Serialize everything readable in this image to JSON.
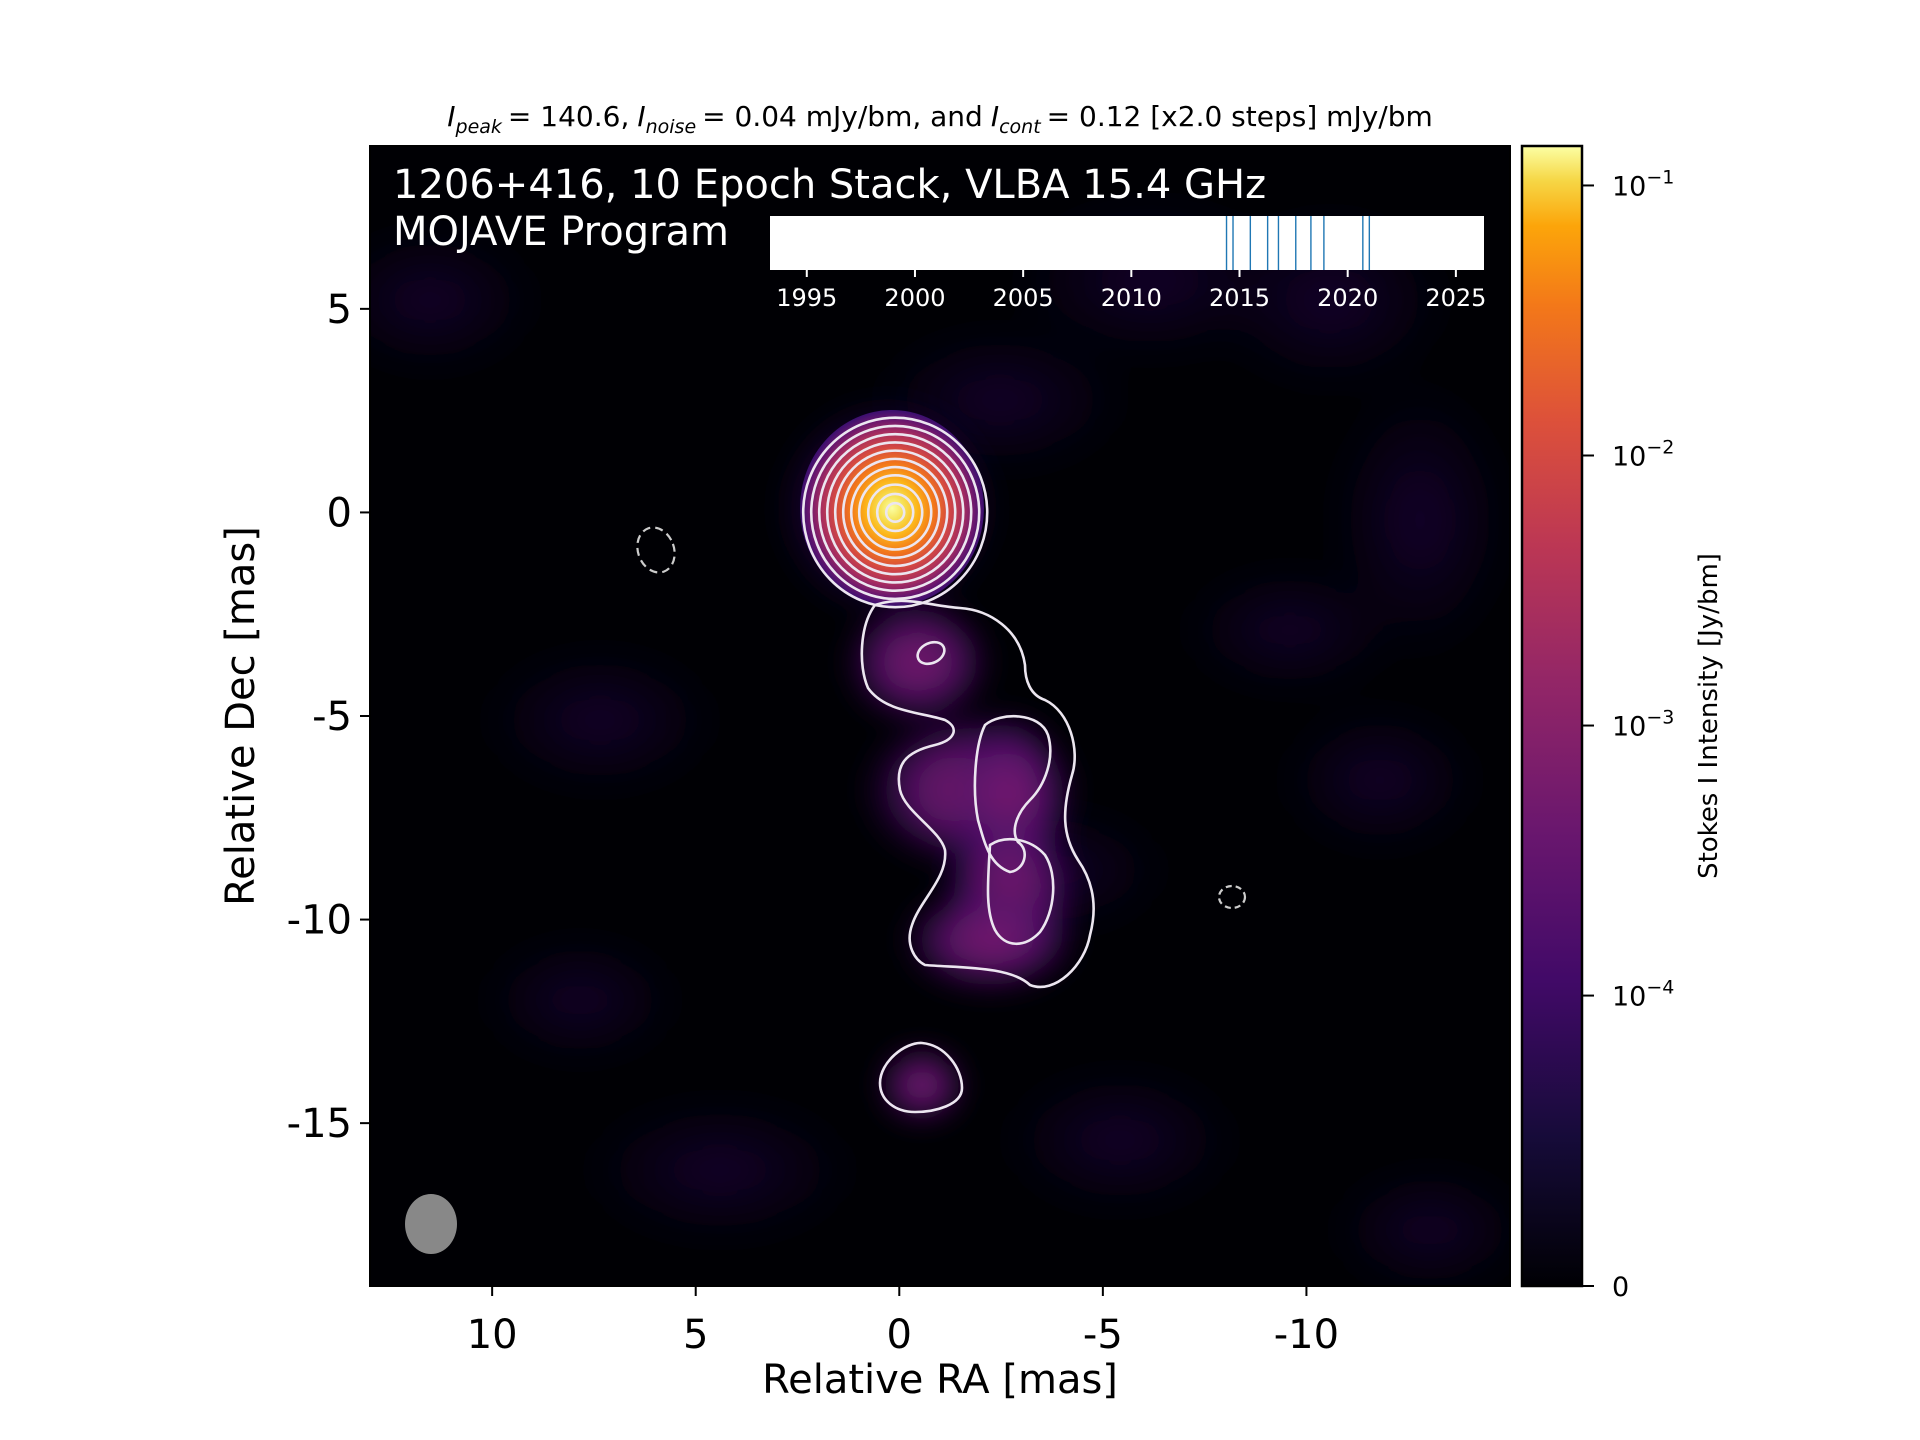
{
  "chart_data": {
    "type": "heatmap",
    "title": {
      "peak_symbol": "I",
      "peak_sub": "peak",
      "peak_value": "= 140.6,",
      "noise_symbol": "I",
      "noise_sub": "noise",
      "noise_value": "= 0.04 mJy/bm, and",
      "cont_symbol": "I",
      "cont_sub": "cont",
      "cont_value": "= 0.12 [x2.0 steps] mJy/bm"
    },
    "overlay_title": [
      "1206+416, 10 Epoch Stack, VLBA 15.4 GHz",
      "MOJAVE Program"
    ],
    "xlabel": "Relative RA [mas]",
    "ylabel": "Relative Dec [mas]",
    "xlim": [
      13,
      -15
    ],
    "ylim": [
      -19,
      9
    ],
    "x_ticks": [
      10,
      5,
      0,
      -5,
      -10
    ],
    "x_tick_labels": [
      "10",
      "5",
      "0",
      "-5",
      "-10"
    ],
    "y_ticks": [
      5,
      0,
      -5,
      -10,
      -15
    ],
    "y_tick_labels": [
      "5",
      "0",
      "-5",
      "-10",
      "-15"
    ],
    "colorbar": {
      "label": "Stokes I Intensity [Jy/bm]",
      "colormap": "inferno",
      "scale": "log",
      "range_jy": [
        0,
        0.14
      ],
      "ticks": [
        0.1,
        0.01,
        0.001,
        0.0001,
        0
      ],
      "tick_labels": [
        {
          "base": "10",
          "exp": "−1"
        },
        {
          "base": "10",
          "exp": "−2"
        },
        {
          "base": "10",
          "exp": "−3"
        },
        {
          "base": "10",
          "exp": "−4"
        },
        {
          "base": "0",
          "exp": ""
        }
      ]
    },
    "epoch_timeline": {
      "xlim": [
        1993.3,
        2026.3
      ],
      "ticks": [
        1995,
        2000,
        2005,
        2010,
        2015,
        2020,
        2025
      ],
      "tick_labels": [
        "1995",
        "2000",
        "2005",
        "2010",
        "2015",
        "2020",
        "2025"
      ],
      "epochs": [
        2014.4,
        2014.7,
        2015.5,
        2016.3,
        2016.8,
        2017.6,
        2018.3,
        2018.9,
        2020.7,
        2021.0
      ],
      "line_color": "#1f77b4"
    },
    "components": [
      {
        "name": "core",
        "ra": 0.1,
        "dec": 0.0,
        "peak_jy": 0.1406
      },
      {
        "name": "inner-jet",
        "ra": -0.7,
        "dec": -3.7,
        "peak_jy": 0.0005
      },
      {
        "name": "jet-upper",
        "ra": -3.0,
        "dec": -6.8,
        "peak_jy": 0.0006
      },
      {
        "name": "jet-lower",
        "ra": -3.0,
        "dec": -9.5,
        "peak_jy": 0.0006
      },
      {
        "name": "outer-knot",
        "ra": -0.5,
        "dec": -14.2,
        "peak_jy": 0.0003
      }
    ],
    "beam": {
      "ra": 11.4,
      "dec": -17.6,
      "major_mas": 1.5,
      "minor_mas": 1.25,
      "pa_deg": 0,
      "color": "#888888"
    },
    "negative_contours": [
      {
        "ra": 6.0,
        "dec": -1.1
      },
      {
        "ra": -8.1,
        "dec": -9.6
      }
    ],
    "contour_color": "#ece6f0",
    "colors": {
      "axes_bg": "#000004",
      "contour": "#ece6f0",
      "beam": "#888888"
    }
  }
}
